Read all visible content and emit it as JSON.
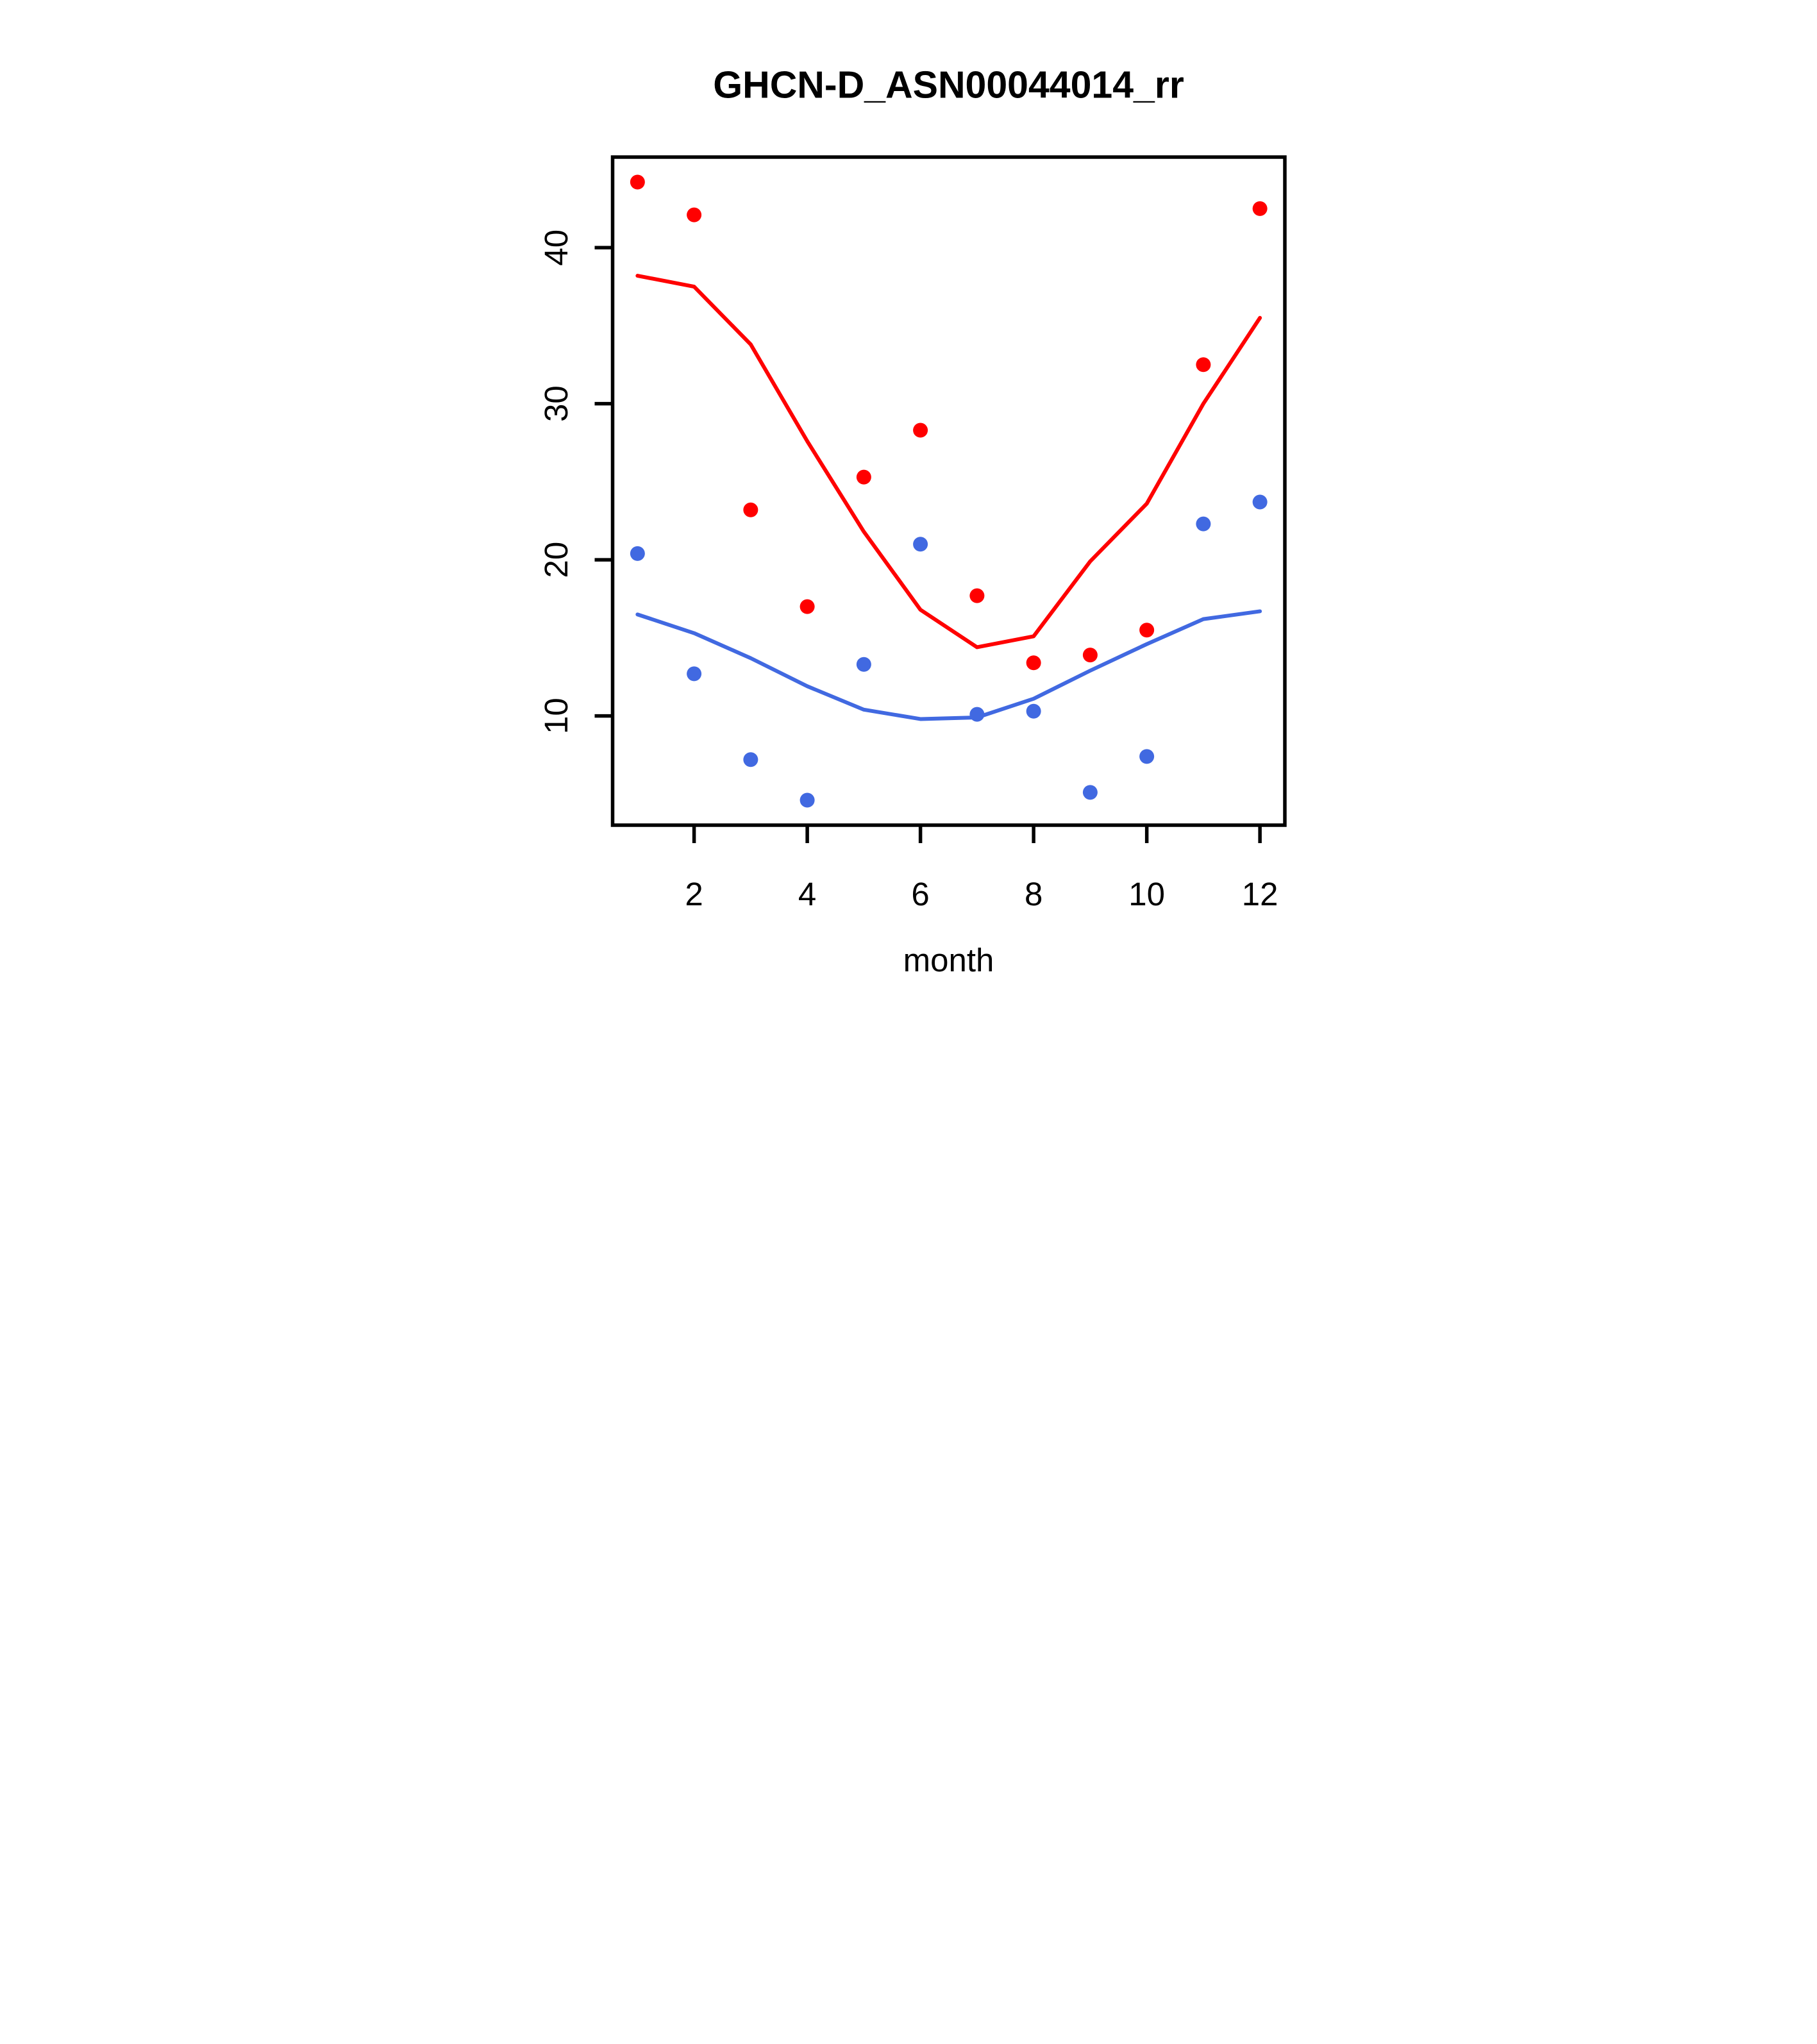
{
  "chart_data": {
    "type": "scatter",
    "title": "GHCN-D_ASN00044014_rr",
    "xlabel": "month",
    "ylabel": "",
    "x": [
      1,
      2,
      3,
      4,
      5,
      6,
      7,
      8,
      9,
      10,
      11,
      12
    ],
    "xlim": [
      0.56,
      12.44
    ],
    "ylim": [
      3.0,
      45.8
    ],
    "xticks": [
      2,
      4,
      6,
      8,
      10,
      12
    ],
    "yticks": [
      10,
      20,
      30,
      40
    ],
    "grid": "off",
    "legend": "none",
    "frame_color": "#000000",
    "series": [
      {
        "name": "red-points",
        "type": "scatter",
        "color": "#ff0000",
        "values": [
          44.2,
          42.1,
          23.2,
          17.0,
          25.3,
          28.3,
          17.7,
          13.4,
          13.9,
          15.5,
          32.5,
          42.5
        ]
      },
      {
        "name": "blue-points",
        "type": "scatter",
        "color": "#4169e1",
        "values": [
          20.4,
          12.7,
          7.2,
          4.6,
          13.3,
          21.0,
          10.1,
          10.3,
          5.1,
          7.4,
          22.3,
          23.7
        ]
      },
      {
        "name": "red-smooth-line",
        "type": "line",
        "color": "#ff0000",
        "values": [
          38.2,
          37.5,
          33.8,
          27.6,
          21.8,
          16.8,
          14.4,
          15.1,
          19.9,
          23.6,
          30.0,
          35.5
        ]
      },
      {
        "name": "blue-smooth-line",
        "type": "line",
        "color": "#4169e1",
        "values": [
          16.5,
          15.3,
          13.7,
          11.9,
          10.4,
          9.8,
          9.9,
          11.1,
          12.9,
          14.6,
          16.2,
          16.7
        ]
      }
    ]
  }
}
